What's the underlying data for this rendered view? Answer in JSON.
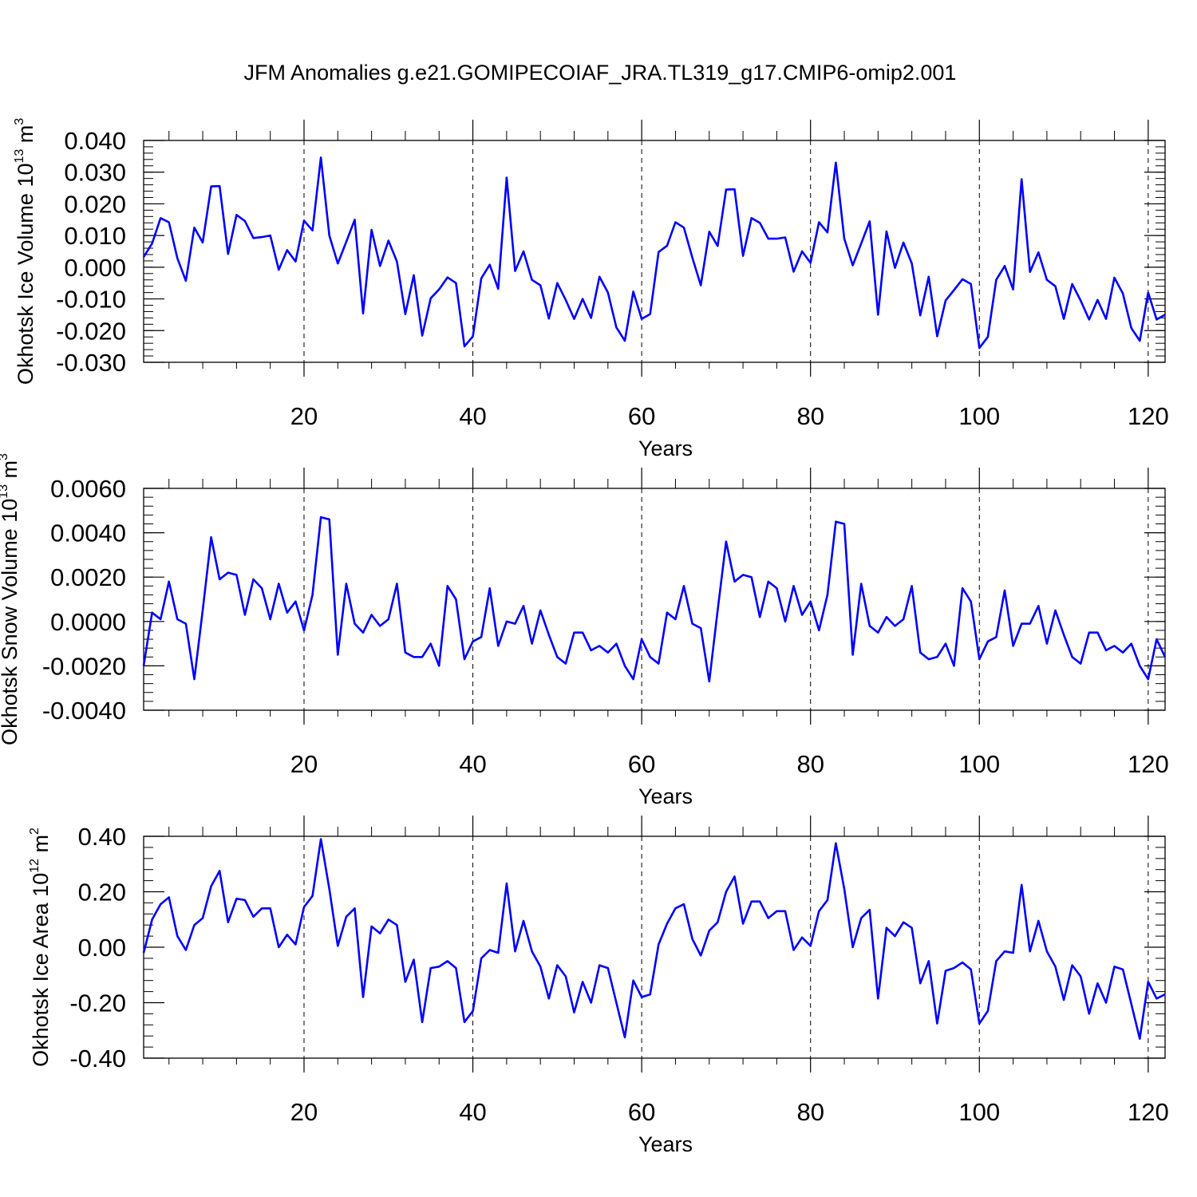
{
  "title": "JFM Anomalies g.e21.GOMIPECOIAF_JRA.TL319_g17.CMIP6-omip2.001",
  "line_color": "#0000ff",
  "chart_data": [
    {
      "type": "line",
      "name": "ice-volume",
      "title": "JFM Anomalies g.e21.GOMIPECOIAF_JRA.TL319_g17.CMIP6-omip2.001",
      "xlabel": "Years",
      "ylabel": {
        "text": "Okhotsk Ice Volume 10",
        "sup1": "13",
        "unit": " m",
        "sup2": "3"
      },
      "xlim": [
        1,
        122
      ],
      "ylim": [
        -0.03,
        0.04
      ],
      "grid": "dashed vertical lines at 20, 40, 60, 80, 100, 120",
      "xticks": [
        20,
        40,
        60,
        80,
        100,
        120
      ],
      "xticklabels": [
        "20",
        "40",
        "60",
        "80",
        "100",
        "120"
      ],
      "yticks": [
        -0.03,
        -0.02,
        -0.01,
        0.0,
        0.01,
        0.02,
        0.03,
        0.04
      ],
      "yticklabels": [
        "-0.030",
        "-0.020",
        "-0.010",
        "0.000",
        "0.010",
        "0.020",
        "0.030",
        "0.040"
      ],
      "yminor_step": 0.002,
      "series": [
        {
          "name": "Okhotsk Ice Volume",
          "x": [
            1,
            2,
            3,
            4,
            5,
            6,
            7,
            8,
            9,
            10,
            11,
            12,
            13,
            14,
            15,
            16,
            17,
            18,
            19,
            20,
            21,
            22,
            23,
            24,
            25,
            26,
            27,
            28,
            29,
            30,
            31,
            32,
            33,
            34,
            35,
            36,
            37,
            38,
            39,
            40,
            41,
            42,
            43,
            44,
            45,
            46,
            47,
            48,
            49,
            50,
            51,
            52,
            53,
            54,
            55,
            56,
            57,
            58,
            59,
            60,
            61,
            62,
            63,
            64,
            65,
            66,
            67,
            68,
            69,
            70,
            71,
            72,
            73,
            74,
            75,
            76,
            77,
            78,
            79,
            80,
            81,
            82,
            83,
            84,
            85,
            86,
            87,
            88,
            89,
            90,
            91,
            92,
            93,
            94,
            95,
            96,
            97,
            98,
            99,
            100,
            101,
            102,
            103,
            104,
            105,
            106,
            107,
            108,
            109,
            110,
            111,
            112,
            113,
            114,
            115,
            116,
            117,
            118,
            119,
            120,
            121,
            122
          ],
          "values": [
            0.0032,
            0.0075,
            0.0155,
            0.0142,
            0.0028,
            -0.0043,
            0.0125,
            0.0078,
            0.0255,
            0.0256,
            0.0042,
            0.0165,
            0.0146,
            0.0092,
            0.0095,
            0.01,
            -0.0008,
            0.0054,
            0.0018,
            0.0147,
            0.0116,
            0.0346,
            0.01,
            0.0012,
            0.008,
            0.015,
            -0.0146,
            0.0118,
            0.0004,
            0.0084,
            0.0018,
            -0.0148,
            -0.0025,
            -0.0216,
            -0.0098,
            -0.007,
            -0.0032,
            -0.005,
            -0.025,
            -0.0218,
            -0.0035,
            0.0008,
            -0.0068,
            0.0283,
            -0.0012,
            0.005,
            -0.004,
            -0.0057,
            -0.0162,
            -0.005,
            -0.0103,
            -0.0163,
            -0.01,
            -0.016,
            -0.003,
            -0.008,
            -0.019,
            -0.0232,
            -0.0077,
            -0.0163,
            -0.0148,
            0.0048,
            0.0068,
            0.0142,
            0.0125,
            0.003,
            -0.0057,
            0.0112,
            0.0067,
            0.0245,
            0.0246,
            0.0036,
            0.0155,
            0.014,
            0.009,
            0.009,
            0.0094,
            -0.0014,
            0.005,
            0.0014,
            0.0142,
            0.011,
            0.033,
            0.009,
            0.0006,
            0.0075,
            0.0145,
            -0.015,
            0.0113,
            -0.0002,
            0.0078,
            0.0012,
            -0.0152,
            -0.003,
            -0.0218,
            -0.0105,
            -0.0072,
            -0.0038,
            -0.0053,
            -0.0255,
            -0.022,
            -0.004,
            0.0004,
            -0.007,
            0.0278,
            -0.0015,
            0.0047,
            -0.004,
            -0.006,
            -0.0163,
            -0.0053,
            -0.0105,
            -0.0165,
            -0.0103,
            -0.0163,
            -0.0033,
            -0.0083,
            -0.0192,
            -0.0232,
            -0.008,
            -0.0165,
            -0.015
          ]
        }
      ]
    },
    {
      "type": "line",
      "name": "snow-volume",
      "title": "",
      "xlabel": "Years",
      "ylabel": {
        "text": "Okhotsk Snow Volume 10",
        "sup1": "13",
        "unit": " m",
        "sup2": "3"
      },
      "xlim": [
        1,
        122
      ],
      "ylim": [
        -0.004,
        0.006
      ],
      "grid": "dashed vertical lines at 20, 40, 60, 80, 100, 120",
      "xticks": [
        20,
        40,
        60,
        80,
        100,
        120
      ],
      "xticklabels": [
        "20",
        "40",
        "60",
        "80",
        "100",
        "120"
      ],
      "yticks": [
        -0.004,
        -0.002,
        0.0,
        0.002,
        0.004,
        0.006
      ],
      "yticklabels": [
        "-0.0040",
        "-0.0020",
        "0.0000",
        "0.0020",
        "0.0040",
        "0.0060"
      ],
      "yminor_step": 0.0004,
      "series": [
        {
          "name": "Okhotsk Snow Volume",
          "x": [
            1,
            2,
            3,
            4,
            5,
            6,
            7,
            8,
            9,
            10,
            11,
            12,
            13,
            14,
            15,
            16,
            17,
            18,
            19,
            20,
            21,
            22,
            23,
            24,
            25,
            26,
            27,
            28,
            29,
            30,
            31,
            32,
            33,
            34,
            35,
            36,
            37,
            38,
            39,
            40,
            41,
            42,
            43,
            44,
            45,
            46,
            47,
            48,
            49,
            50,
            51,
            52,
            53,
            54,
            55,
            56,
            57,
            58,
            59,
            60,
            61,
            62,
            63,
            64,
            65,
            66,
            67,
            68,
            69,
            70,
            71,
            72,
            73,
            74,
            75,
            76,
            77,
            78,
            79,
            80,
            81,
            82,
            83,
            84,
            85,
            86,
            87,
            88,
            89,
            90,
            91,
            92,
            93,
            94,
            95,
            96,
            97,
            98,
            99,
            100,
            101,
            102,
            103,
            104,
            105,
            106,
            107,
            108,
            109,
            110,
            111,
            112,
            113,
            114,
            115,
            116,
            117,
            118,
            119,
            120,
            121,
            122
          ],
          "values": [
            -0.002,
            0.0004,
            0.0001,
            0.0018,
            0.0001,
            -0.0001,
            -0.0026,
            0.0005,
            0.0038,
            0.0019,
            0.0022,
            0.0021,
            0.0003,
            0.0019,
            0.0015,
            0.0001,
            0.0017,
            0.0004,
            0.0009,
            -0.0004,
            0.0012,
            0.0047,
            0.0046,
            -0.0015,
            0.0017,
            -0.0001,
            -0.0005,
            0.0003,
            -0.0002,
            0.0001,
            0.0017,
            -0.0014,
            -0.0016,
            -0.0016,
            -0.001,
            -0.002,
            0.0016,
            0.001,
            -0.0017,
            -0.0009,
            -0.0007,
            0.0015,
            -0.0011,
            0.0,
            -0.0001,
            0.0007,
            -0.001,
            0.0005,
            -0.0006,
            -0.0016,
            -0.0019,
            -0.0005,
            -0.0005,
            -0.0013,
            -0.0011,
            -0.0014,
            -0.001,
            -0.002,
            -0.0026,
            -0.0008,
            -0.0016,
            -0.0019,
            0.0004,
            0.0001,
            0.0016,
            -0.0001,
            -0.0003,
            -0.0027,
            0.0005,
            0.0036,
            0.0018,
            0.0021,
            0.002,
            0.0002,
            0.0018,
            0.0015,
            0.0,
            0.0016,
            0.0003,
            0.0009,
            -0.0004,
            0.0012,
            0.0045,
            0.0044,
            -0.0015,
            0.0017,
            -0.0002,
            -0.0005,
            0.0002,
            -0.0002,
            0.0001,
            0.0016,
            -0.0014,
            -0.0017,
            -0.0016,
            -0.001,
            -0.002,
            0.0015,
            0.0009,
            -0.0017,
            -0.0009,
            -0.0007,
            0.0014,
            -0.0011,
            -0.0001,
            -0.0001,
            0.0007,
            -0.001,
            0.0005,
            -0.0006,
            -0.0016,
            -0.0019,
            -0.0005,
            -0.0005,
            -0.0013,
            -0.0011,
            -0.0014,
            -0.001,
            -0.002,
            -0.0026,
            -0.0008,
            -0.0016
          ]
        }
      ]
    },
    {
      "type": "line",
      "name": "ice-area",
      "title": "",
      "xlabel": "Years",
      "ylabel": {
        "text": "Okhotsk Ice Area 10",
        "sup1": "12",
        "unit": " m",
        "sup2": "2"
      },
      "xlim": [
        1,
        122
      ],
      "ylim": [
        -0.4,
        0.4
      ],
      "grid": "dashed vertical lines at 20, 40, 60, 80, 100, 120",
      "xticks": [
        20,
        40,
        60,
        80,
        100,
        120
      ],
      "xticklabels": [
        "20",
        "40",
        "60",
        "80",
        "100",
        "120"
      ],
      "yticks": [
        -0.4,
        -0.2,
        0.0,
        0.2,
        0.4
      ],
      "yticklabels": [
        "-0.40",
        "-0.20",
        "0.00",
        "0.20",
        "0.40"
      ],
      "yminor_step": 0.04,
      "series": [
        {
          "name": "Okhotsk Ice Area",
          "x": [
            1,
            2,
            3,
            4,
            5,
            6,
            7,
            8,
            9,
            10,
            11,
            12,
            13,
            14,
            15,
            16,
            17,
            18,
            19,
            20,
            21,
            22,
            23,
            24,
            25,
            26,
            27,
            28,
            29,
            30,
            31,
            32,
            33,
            34,
            35,
            36,
            37,
            38,
            39,
            40,
            41,
            42,
            43,
            44,
            45,
            46,
            47,
            48,
            49,
            50,
            51,
            52,
            53,
            54,
            55,
            56,
            57,
            58,
            59,
            60,
            61,
            62,
            63,
            64,
            65,
            66,
            67,
            68,
            69,
            70,
            71,
            72,
            73,
            74,
            75,
            76,
            77,
            78,
            79,
            80,
            81,
            82,
            83,
            84,
            85,
            86,
            87,
            88,
            89,
            90,
            91,
            92,
            93,
            94,
            95,
            96,
            97,
            98,
            99,
            100,
            101,
            102,
            103,
            104,
            105,
            106,
            107,
            108,
            109,
            110,
            111,
            112,
            113,
            114,
            115,
            116,
            117,
            118,
            119,
            120,
            121,
            122
          ],
          "values": [
            -0.02,
            0.1,
            0.155,
            0.18,
            0.04,
            -0.01,
            0.08,
            0.105,
            0.22,
            0.275,
            0.09,
            0.175,
            0.17,
            0.11,
            0.14,
            0.14,
            0.0,
            0.045,
            0.01,
            0.145,
            0.185,
            0.39,
            0.21,
            0.005,
            0.11,
            0.14,
            -0.18,
            0.075,
            0.05,
            0.1,
            0.08,
            -0.125,
            -0.045,
            -0.27,
            -0.075,
            -0.07,
            -0.05,
            -0.075,
            -0.27,
            -0.23,
            -0.04,
            -0.01,
            -0.02,
            0.23,
            -0.015,
            0.095,
            -0.015,
            -0.07,
            -0.185,
            -0.065,
            -0.105,
            -0.235,
            -0.125,
            -0.2,
            -0.065,
            -0.075,
            -0.2,
            -0.325,
            -0.12,
            -0.18,
            -0.17,
            0.01,
            0.085,
            0.14,
            0.155,
            0.03,
            -0.03,
            0.06,
            0.09,
            0.2,
            0.255,
            0.085,
            0.165,
            0.165,
            0.105,
            0.13,
            0.13,
            -0.01,
            0.035,
            0.005,
            0.13,
            0.17,
            0.375,
            0.21,
            0.0,
            0.105,
            0.135,
            -0.185,
            0.07,
            0.04,
            0.09,
            0.07,
            -0.13,
            -0.05,
            -0.275,
            -0.085,
            -0.075,
            -0.055,
            -0.08,
            -0.275,
            -0.23,
            -0.05,
            -0.015,
            -0.02,
            0.225,
            -0.015,
            0.095,
            -0.015,
            -0.07,
            -0.19,
            -0.065,
            -0.105,
            -0.24,
            -0.13,
            -0.2,
            -0.07,
            -0.08,
            -0.205,
            -0.33,
            -0.125,
            -0.185,
            -0.17
          ]
        }
      ]
    }
  ]
}
